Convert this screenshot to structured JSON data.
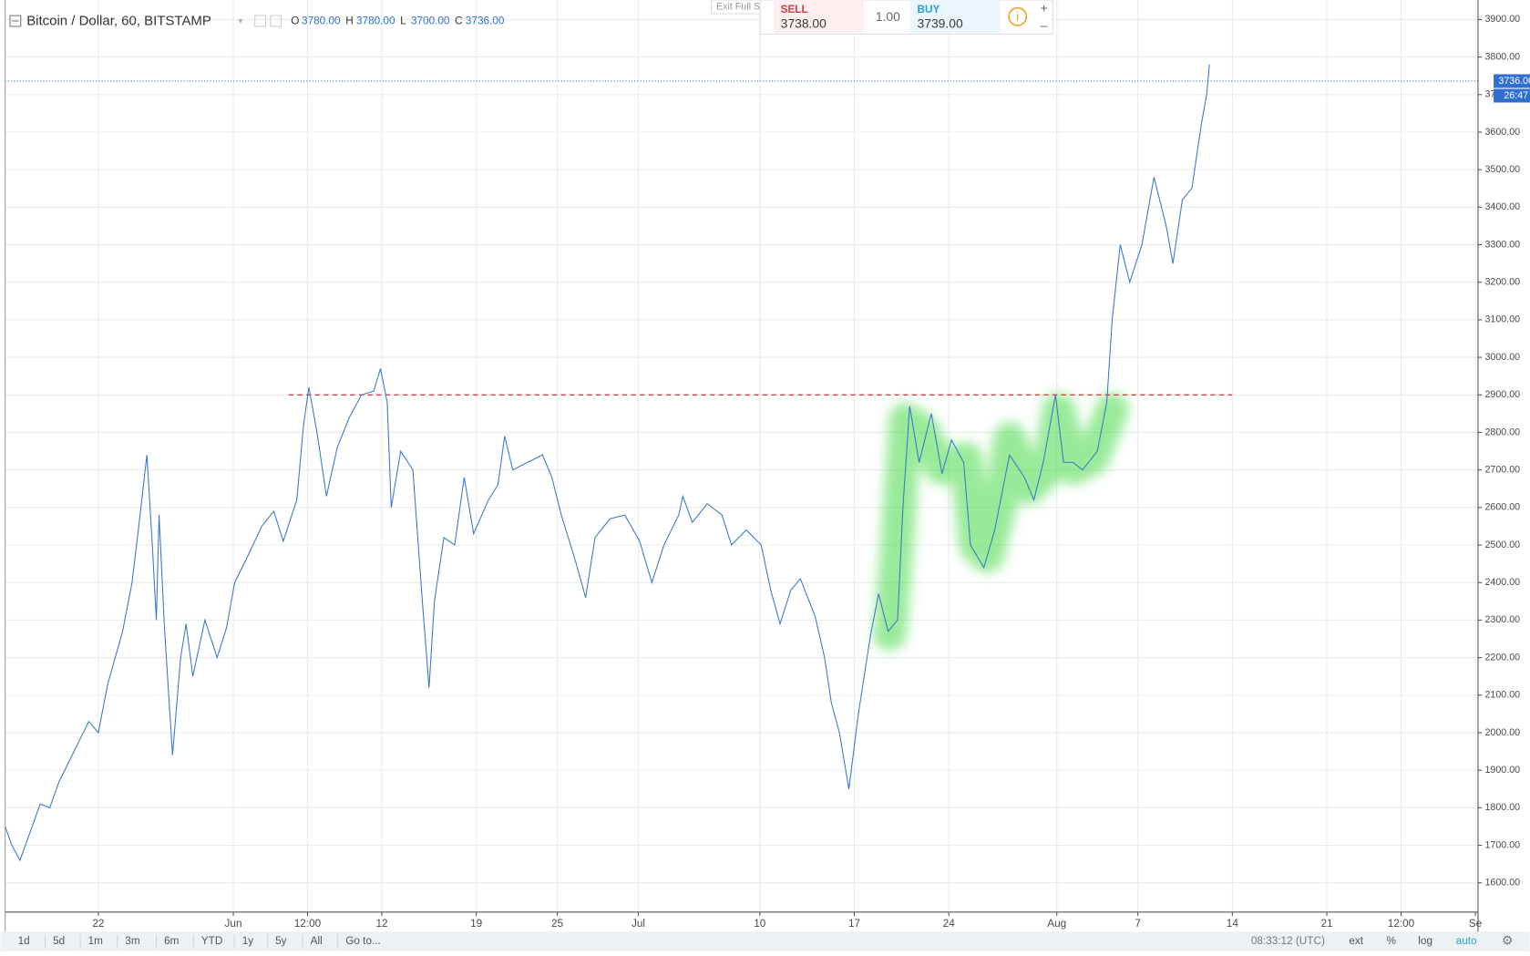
{
  "chart_data": {
    "type": "line",
    "title": "Bitcoin / Dollar, 60, BITSTAMP",
    "ohlc": [
      {
        "name": "O",
        "value": 3780,
        "label": "3780.00"
      },
      {
        "name": "H",
        "value": 3780,
        "label": "3780.00"
      },
      {
        "name": "L",
        "value": 3700,
        "label": "3700.00"
      },
      {
        "name": "C",
        "value": 3736,
        "label": "3736.00"
      }
    ],
    "color": "#3c78c8",
    "x": [
      -6.9,
      -6.4,
      -5.8,
      -5.1,
      -4.3,
      -3.6,
      -2.9,
      -1.8,
      -0.7,
      0,
      0.7,
      1.8,
      2.5,
      3.0,
      3.6,
      4.0,
      4.3,
      4.5,
      4.9,
      5.5,
      6.1,
      6.5,
      7.0,
      7.9,
      8.8,
      9.5,
      10.1,
      11.2,
      12.1,
      13.0,
      13.7,
      14.7,
      15.2,
      15.6,
      16.2,
      16.9,
      17.7,
      18.6,
      19.5,
      20.4,
      20.9,
      21.4,
      21.7,
      22.4,
      23.3,
      24.0,
      24.5,
      24.9,
      25.6,
      26.4,
      27.1,
      27.8,
      28.9,
      29.6,
      30.1,
      30.7,
      31.8,
      32.9,
      33.6,
      34.3,
      35.4,
      36.1,
      36.8,
      37.9,
      39.0,
      40.1,
      41.0,
      41.9,
      43.0,
      43.3,
      44.0,
      45.1,
      46.2,
      46.9,
      48.0,
      49.1,
      49.8,
      50.5,
      51.3,
      52.0,
      53.1,
      53.8,
      54.3,
      54.9,
      55.6,
      56.3,
      57.2,
      57.8,
      58.5,
      59.2,
      59.6,
      60.1,
      60.8,
      61.7,
      62.5,
      63.2,
      64.1,
      64.6,
      65.6,
      66.4,
      67.5,
      68.6,
      69.3,
      70.0,
      70.9,
      71.5,
      72.2,
      72.9,
      74.0,
      74.7,
      75.1,
      75.7,
      76.4,
      77.3,
      78.2,
      79.1,
      79.6,
      80.3,
      81.0,
      81.7,
      82.1,
      82.3
    ],
    "values": [
      1750,
      1700,
      1660,
      1730,
      1810,
      1800,
      1870,
      1950,
      2030,
      2000,
      2130,
      2270,
      2400,
      2550,
      2740,
      2500,
      2300,
      2580,
      2280,
      1940,
      2200,
      2290,
      2150,
      2300,
      2200,
      2280,
      2400,
      2480,
      2550,
      2590,
      2510,
      2620,
      2820,
      2920,
      2800,
      2630,
      2760,
      2840,
      2900,
      2910,
      2970,
      2880,
      2600,
      2750,
      2700,
      2350,
      2120,
      2350,
      2520,
      2500,
      2680,
      2530,
      2620,
      2660,
      2790,
      2700,
      2720,
      2740,
      2680,
      2580,
      2450,
      2360,
      2520,
      2570,
      2580,
      2510,
      2400,
      2500,
      2580,
      2630,
      2560,
      2610,
      2580,
      2500,
      2540,
      2500,
      2380,
      2290,
      2380,
      2410,
      2310,
      2200,
      2080,
      2000,
      1850,
      2050,
      2260,
      2370,
      2270,
      2300,
      2600,
      2870,
      2720,
      2850,
      2690,
      2780,
      2720,
      2500,
      2440,
      2540,
      2740,
      2680,
      2620,
      2720,
      2900,
      2720,
      2720,
      2700,
      2750,
      2880,
      3100,
      3300,
      3200,
      3300,
      3480,
      3350,
      3250,
      3420,
      3450,
      3620,
      3700,
      3780
    ],
    "xlim": [
      -6.9,
      102.2
    ],
    "xticks": [
      {
        "value": 0,
        "label": "22"
      },
      {
        "value": 10,
        "label": "Jun"
      },
      {
        "value": 15.5,
        "label": "12:00"
      },
      {
        "value": 21,
        "label": "12"
      },
      {
        "value": 28,
        "label": "19"
      },
      {
        "value": 34,
        "label": "25"
      },
      {
        "value": 40,
        "label": "Jul"
      },
      {
        "value": 49,
        "label": "10"
      },
      {
        "value": 56,
        "label": "17"
      },
      {
        "value": 63,
        "label": "24"
      },
      {
        "value": 71,
        "label": "Aug"
      },
      {
        "value": 77,
        "label": "7"
      },
      {
        "value": 84,
        "label": "14"
      },
      {
        "value": 91,
        "label": "21"
      },
      {
        "value": 96.5,
        "label": "12:00"
      },
      {
        "value": 102,
        "label": "Se"
      }
    ],
    "ylim": [
      1522,
      3939
    ],
    "yticks": [
      {
        "value": 1600,
        "label": "1600.00"
      },
      {
        "value": 1700,
        "label": "1700.00"
      },
      {
        "value": 1800,
        "label": "1800.00"
      },
      {
        "value": 1900,
        "label": "1900.00"
      },
      {
        "value": 2000,
        "label": "2000.00"
      },
      {
        "value": 2100,
        "label": "2100.00"
      },
      {
        "value": 2200,
        "label": "2200.00"
      },
      {
        "value": 2300,
        "label": "2300.00"
      },
      {
        "value": 2400,
        "label": "2400.00"
      },
      {
        "value": 2500,
        "label": "2500.00"
      },
      {
        "value": 2600,
        "label": "2600.00"
      },
      {
        "value": 2700,
        "label": "2700.00"
      },
      {
        "value": 2800,
        "label": "2800.00"
      },
      {
        "value": 2900,
        "label": "2900.00"
      },
      {
        "value": 3000,
        "label": "3000.00"
      },
      {
        "value": 3100,
        "label": "3100.00"
      },
      {
        "value": 3200,
        "label": "3200.00"
      },
      {
        "value": 3300,
        "label": "3300.00"
      },
      {
        "value": 3400,
        "label": "3400.00"
      },
      {
        "value": 3500,
        "label": "3500.00"
      },
      {
        "value": 3600,
        "label": "3600.00"
      },
      {
        "value": 3700,
        "label": "3700.00"
      },
      {
        "value": 3800,
        "label": "3800.00"
      },
      {
        "value": 3900,
        "label": "3900.00"
      }
    ],
    "grid": true,
    "reference_line": {
      "value": 2900,
      "x": [
        14.1,
        84.0
      ],
      "color": "#e03030"
    },
    "last_price": {
      "value": 3736,
      "label": "3736.00",
      "countdown": "26:47",
      "color": "#2f6fd0"
    }
  },
  "trade_panel": {
    "sell_label": "SELL",
    "sell": "3738.00",
    "quantity": "1.00",
    "buy_label": "BUY",
    "buy": "3739.00",
    "exit": "Exit Full S"
  },
  "toolbar": {
    "ranges": [
      "1d",
      "5d",
      "1m",
      "3m",
      "6m",
      "YTD",
      "1y",
      "5y",
      "All",
      "Go to..."
    ],
    "clock": "08:33:12 (UTC)",
    "options": [
      "ext",
      "%",
      "log",
      "auto"
    ]
  }
}
